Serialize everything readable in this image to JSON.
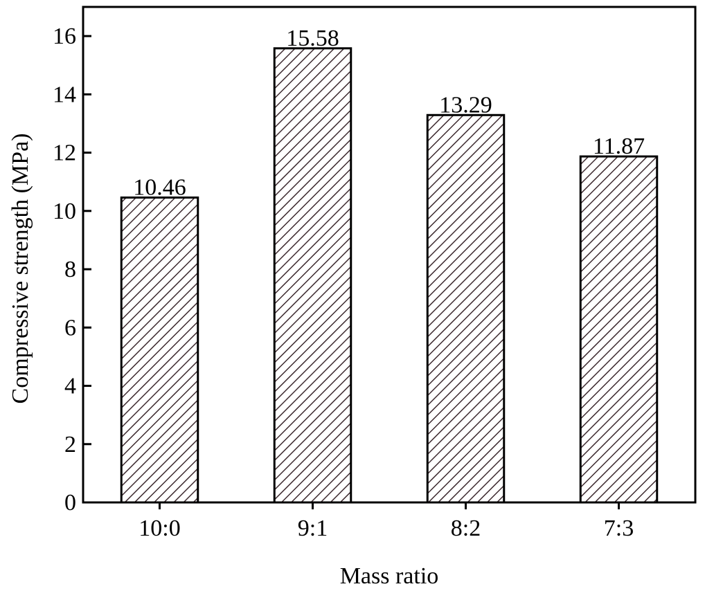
{
  "chart_data": {
    "type": "bar",
    "title": "",
    "xlabel": "Mass ratio",
    "ylabel": "Compressive strength (MPa)",
    "categories": [
      "10:0",
      "9:1",
      "8:2",
      "7:3"
    ],
    "values": [
      10.46,
      15.58,
      13.29,
      11.87
    ],
    "data_labels": [
      "10.46",
      "15.58",
      "13.29",
      "11.87"
    ],
    "ylim": [
      0,
      17
    ],
    "yticks": [
      0,
      2,
      4,
      6,
      8,
      10,
      12,
      14,
      16
    ],
    "ytick_labels": [
      "0",
      "2",
      "4",
      "6",
      "8",
      "10",
      "12",
      "14",
      "16"
    ],
    "grid": false,
    "bar_fill": "hatched",
    "colors": {
      "hatch": "#3d2a2f",
      "bar_background": "#ffffff",
      "axis": "#000000"
    }
  }
}
